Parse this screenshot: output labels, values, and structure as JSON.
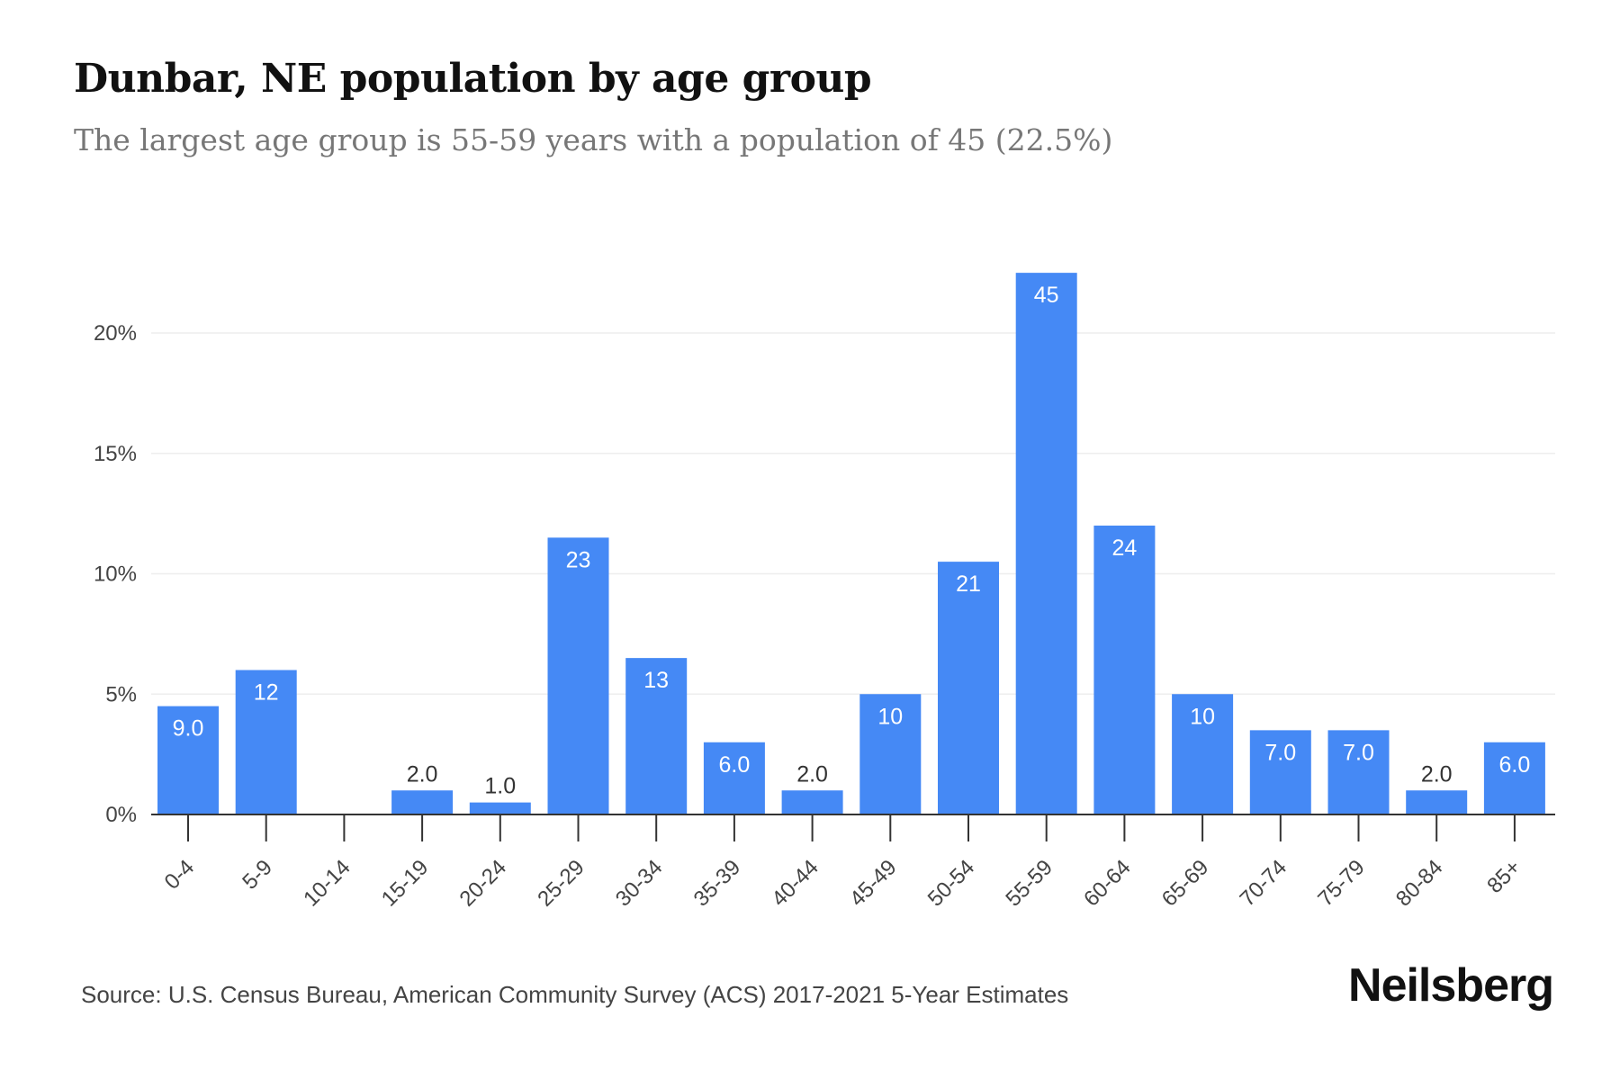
{
  "title": "Dunbar, NE population by age group",
  "subtitle": "The largest age group is 55-59 years with a population of 45 (22.5%)",
  "source": "Source: U.S. Census Bureau, American Community Survey (ACS) 2017-2021 5-Year Estimates",
  "brand": "Neilsberg",
  "colors": {
    "bar": "#4589f5",
    "label_inside": "#ffffff",
    "label_outside": "#333333",
    "grid": "#eeeeee",
    "axis": "#333333"
  },
  "chart_data": {
    "type": "bar",
    "categories": [
      "0-4",
      "5-9",
      "10-14",
      "15-19",
      "20-24",
      "25-29",
      "30-34",
      "35-39",
      "40-44",
      "45-49",
      "50-54",
      "55-59",
      "60-64",
      "65-69",
      "70-74",
      "75-79",
      "80-84",
      "85+"
    ],
    "values": [
      4.5,
      6.0,
      0,
      1.0,
      0.5,
      11.5,
      6.5,
      3.0,
      1.0,
      5.0,
      10.5,
      22.5,
      12.0,
      5.0,
      3.5,
      3.5,
      1.0,
      3.0
    ],
    "data_labels": [
      "9.0",
      "12",
      "",
      "2.0",
      "1.0",
      "23",
      "13",
      "6.0",
      "2.0",
      "10",
      "21",
      "45",
      "24",
      "10",
      "7.0",
      "7.0",
      "2.0",
      "6.0"
    ],
    "yticks": [
      0,
      5,
      10,
      15,
      20
    ],
    "ytick_labels": [
      "0%",
      "5%",
      "10%",
      "15%",
      "20%"
    ],
    "ylim": [
      0,
      25
    ],
    "grid": true,
    "legend": false
  }
}
